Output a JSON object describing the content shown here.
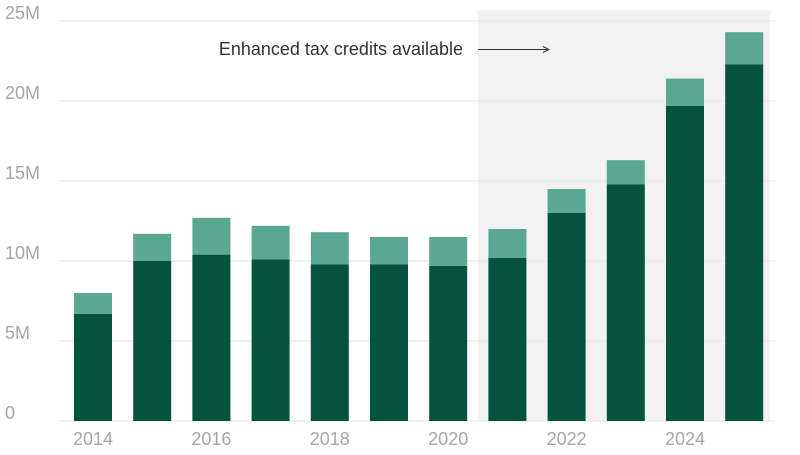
{
  "colors": {
    "dark": "#03533f",
    "light": "#5aa894",
    "shade": "#f2f2f2",
    "grid": "#e6e6e6",
    "tick": "#a6a6a6",
    "annotation": "#333333"
  },
  "chart_data": {
    "type": "bar",
    "stacked": true,
    "title": "",
    "xlabel": "",
    "ylabel": "",
    "ylim": [
      0,
      25000000
    ],
    "yticks": [
      {
        "value": 0,
        "label": "0"
      },
      {
        "value": 5000000,
        "label": "5M"
      },
      {
        "value": 10000000,
        "label": "10M"
      },
      {
        "value": 15000000,
        "label": "15M"
      },
      {
        "value": 20000000,
        "label": "20M"
      },
      {
        "value": 25000000,
        "label": "25M"
      }
    ],
    "categories": [
      "2014",
      "2015",
      "2016",
      "2017",
      "2018",
      "2019",
      "2020",
      "2021",
      "2022",
      "2023",
      "2024",
      "2025"
    ],
    "xtick_labels": [
      "2014",
      "",
      "2016",
      "",
      "2018",
      "",
      "2020",
      "",
      "2022",
      "",
      "2024",
      ""
    ],
    "series": [
      {
        "values": [
          6700000,
          10000000,
          10400000,
          10100000,
          9800000,
          9800000,
          9700000,
          10200000,
          13000000,
          14800000,
          19700000,
          22300000
        ]
      },
      {
        "values": [
          1300000,
          1700000,
          2300000,
          2100000,
          2000000,
          1700000,
          1800000,
          1800000,
          1500000,
          1500000,
          1700000,
          2000000
        ]
      }
    ],
    "grid": true,
    "shaded_region": {
      "from": "2021",
      "to": "2025"
    },
    "annotation": {
      "text": "Enhanced tax credits available",
      "arrow": "right"
    }
  }
}
